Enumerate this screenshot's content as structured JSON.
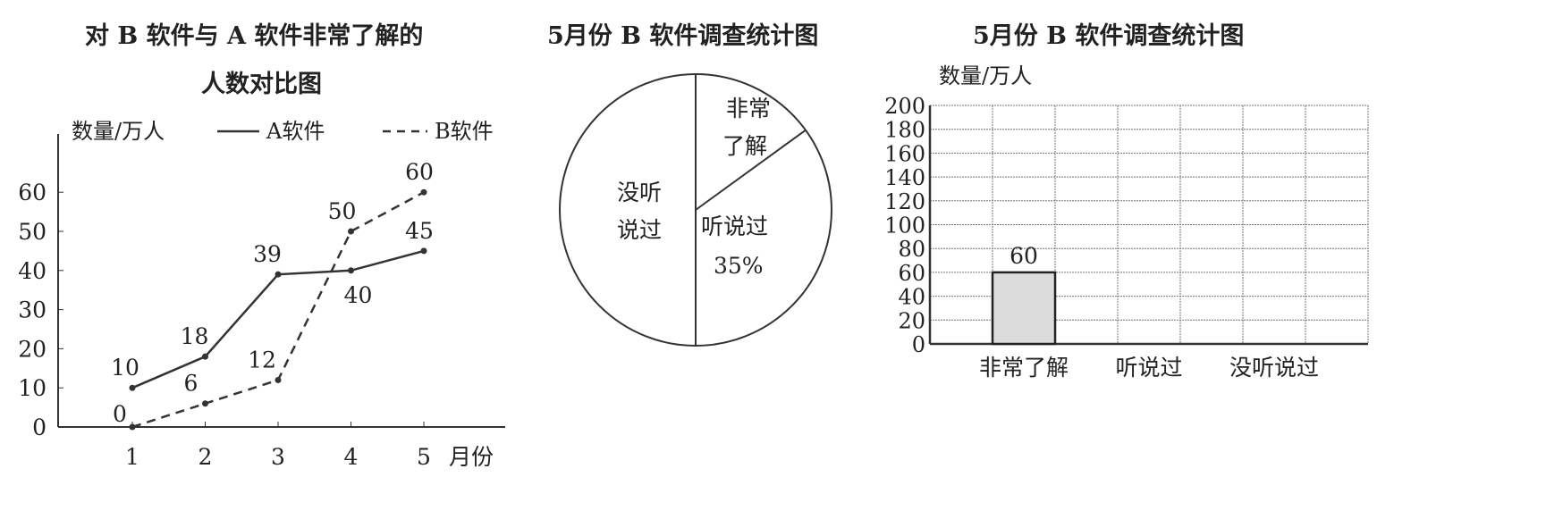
{
  "chart_data": [
    {
      "type": "line",
      "title": [
        "对 B 软件与 A 软件非常了解的",
        "人数对比图"
      ],
      "ylabel": "数量/万人",
      "xlabel": "月份",
      "x": [
        1,
        2,
        3,
        4,
        5
      ],
      "yticks": [
        0,
        10,
        20,
        30,
        40,
        50,
        60
      ],
      "ylim": [
        0,
        60
      ],
      "series": [
        {
          "name": "A软件",
          "values": [
            10,
            18,
            39,
            40,
            45
          ],
          "style": "solid"
        },
        {
          "name": "B软件",
          "values": [
            0,
            6,
            12,
            50,
            60
          ],
          "style": "dashed"
        }
      ],
      "legend": "top",
      "color": "#333333"
    },
    {
      "type": "pie",
      "title": "5月份 B 软件调查统计图",
      "slices": [
        {
          "label": "非常了解",
          "percent": 15
        },
        {
          "label": "听说过",
          "value_label": "35%",
          "percent": 35
        },
        {
          "label": "没听说过",
          "percent": 50
        }
      ]
    },
    {
      "type": "bar",
      "title": "5月份 B 软件调查统计图",
      "ylabel": "数量/万人",
      "categories": [
        "非常了解",
        "听说过",
        "没听说过"
      ],
      "values": [
        60,
        null,
        null
      ],
      "data_labels": [
        "60"
      ],
      "yticks": [
        0,
        20,
        40,
        60,
        80,
        100,
        120,
        140,
        160,
        180,
        200
      ],
      "ylim": [
        0,
        200
      ],
      "grid": true,
      "bar_fill": "#dcdcdc"
    }
  ]
}
